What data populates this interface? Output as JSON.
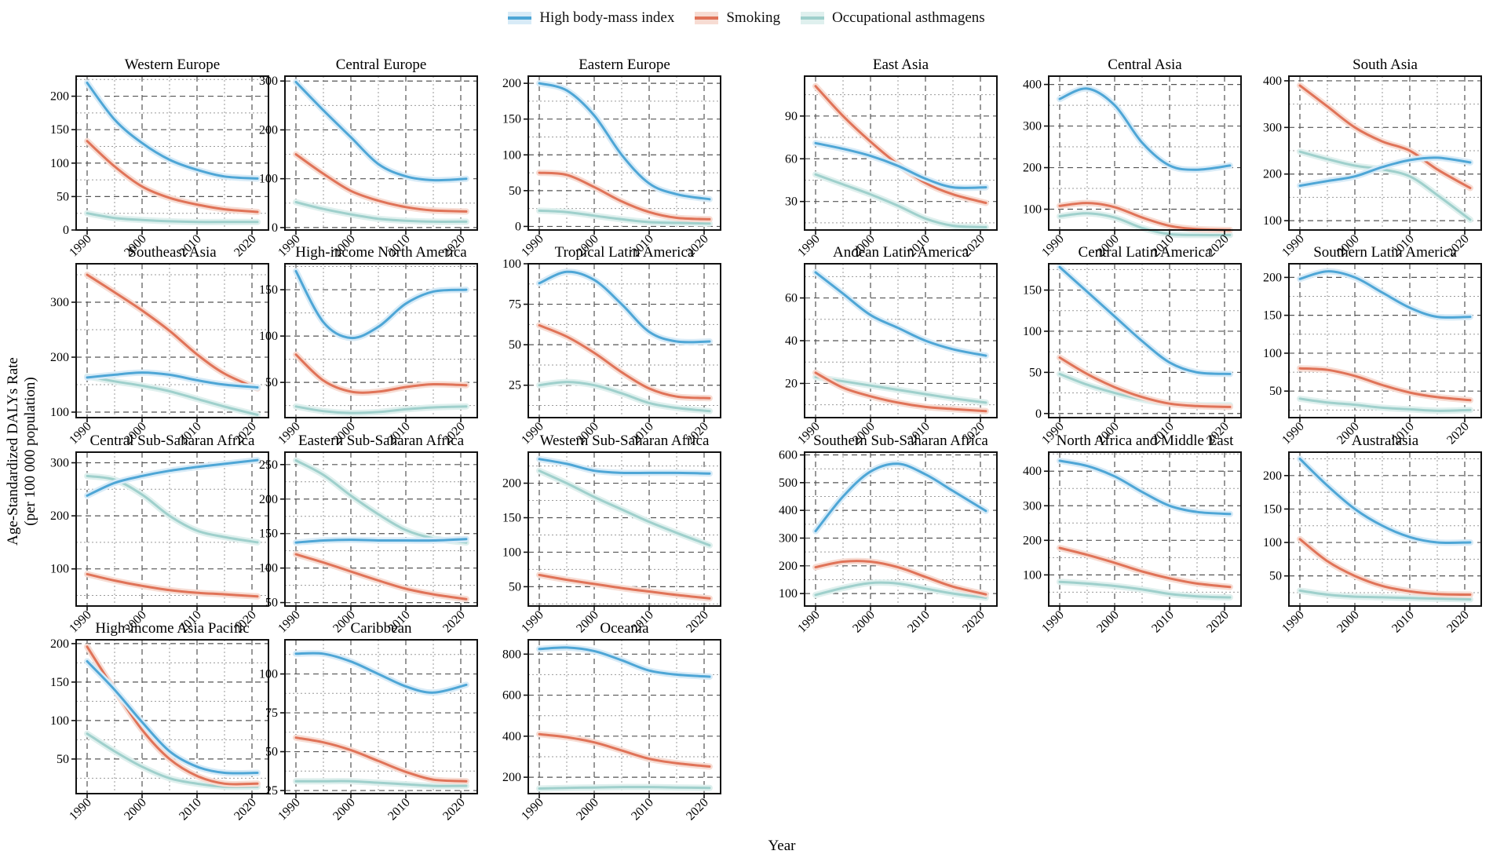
{
  "chart_data": {
    "type": "line",
    "xlabel": "Year",
    "ylabel_line1": "Age-Standardized DALYs Rate",
    "ylabel_line2": "(per 100 000 population)",
    "x_ticks": [
      "1990",
      "2000",
      "2010",
      "2020"
    ],
    "x_years": [
      1990,
      1995,
      2000,
      2005,
      2010,
      2015,
      2021
    ],
    "legend": [
      {
        "name": "High body-mass index",
        "color": "#4ea6d6",
        "fill": "#d8ebf7"
      },
      {
        "name": "Smoking",
        "color": "#e07358",
        "fill": "#f7dcd3"
      },
      {
        "name": "Occupational asthmagens",
        "color": "#9fd0cc",
        "fill": "#dff0ee"
      }
    ],
    "panels": [
      {
        "title": "Western Europe",
        "ylim": [
          0,
          230
        ],
        "yticks": [
          "0",
          "50",
          "100",
          "150",
          "200"
        ],
        "series": [
          [
            220,
            165,
            130,
            105,
            90,
            80,
            77
          ],
          [
            133,
            95,
            65,
            48,
            38,
            31,
            27
          ],
          [
            25,
            18,
            15,
            13,
            12,
            12,
            12
          ]
        ]
      },
      {
        "title": "Central Europe",
        "ylim": [
          -5,
          310
        ],
        "yticks": [
          "0",
          "100",
          "200",
          "300"
        ],
        "series": [
          [
            298,
            240,
            185,
            130,
            105,
            97,
            100
          ],
          [
            150,
            110,
            75,
            55,
            42,
            35,
            33
          ],
          [
            52,
            38,
            27,
            18,
            14,
            12,
            12
          ]
        ]
      },
      {
        "title": "Eastern Europe",
        "ylim": [
          -5,
          210
        ],
        "yticks": [
          "0",
          "50",
          "100",
          "150",
          "200"
        ],
        "series": [
          [
            200,
            190,
            155,
            100,
            60,
            45,
            38
          ],
          [
            75,
            72,
            55,
            35,
            20,
            12,
            10
          ],
          [
            22,
            20,
            15,
            10,
            6,
            5,
            4
          ]
        ]
      },
      {
        "title": "East Asia",
        "ylim": [
          10,
          118
        ],
        "yticks": [
          "30",
          "60",
          "90"
        ],
        "series": [
          [
            71,
            67,
            62,
            55,
            46,
            40,
            40
          ],
          [
            111,
            90,
            72,
            56,
            43,
            35,
            29
          ],
          [
            49,
            42,
            35,
            27,
            18,
            13,
            12
          ]
        ]
      },
      {
        "title": "Central Asia",
        "ylim": [
          50,
          420
        ],
        "yticks": [
          "100",
          "200",
          "300",
          "400"
        ],
        "series": [
          [
            365,
            390,
            350,
            260,
            205,
            195,
            205
          ],
          [
            108,
            115,
            105,
            80,
            60,
            52,
            50
          ],
          [
            83,
            90,
            80,
            55,
            40,
            38,
            38
          ]
        ]
      },
      {
        "title": "South Asia",
        "ylim": [
          80,
          410
        ],
        "yticks": [
          "100",
          "200",
          "300",
          "400"
        ],
        "series": [
          [
            175,
            185,
            195,
            215,
            230,
            235,
            225
          ],
          [
            390,
            345,
            300,
            270,
            250,
            210,
            170
          ],
          [
            248,
            232,
            218,
            210,
            195,
            155,
            102
          ]
        ]
      },
      {
        "title": "Southeast Asia",
        "ylim": [
          90,
          370
        ],
        "yticks": [
          "100",
          "200",
          "300"
        ],
        "series": [
          [
            163,
            168,
            172,
            168,
            158,
            150,
            145
          ],
          [
            350,
            318,
            285,
            248,
            205,
            170,
            143
          ],
          [
            165,
            156,
            148,
            138,
            124,
            110,
            95
          ]
        ]
      },
      {
        "title": "High-income North America",
        "ylim": [
          12,
          178
        ],
        "yticks": [
          "50",
          "100",
          "150"
        ],
        "series": [
          [
            170,
            115,
            98,
            110,
            135,
            148,
            150
          ],
          [
            80,
            52,
            40,
            40,
            45,
            48,
            47
          ],
          [
            24,
            19,
            17,
            18,
            21,
            23,
            24
          ]
        ]
      },
      {
        "title": "Tropical Latin America",
        "ylim": [
          5,
          100
        ],
        "yticks": [
          "25",
          "50",
          "75",
          "100"
        ],
        "series": [
          [
            88,
            95,
            90,
            75,
            58,
            52,
            52
          ],
          [
            62,
            55,
            45,
            33,
            23,
            18,
            17
          ],
          [
            25,
            27,
            25,
            20,
            14,
            11,
            9
          ]
        ]
      },
      {
        "title": "Andean Latin America",
        "ylim": [
          4,
          76
        ],
        "yticks": [
          "20",
          "40",
          "60"
        ],
        "series": [
          [
            72,
            62,
            52,
            46,
            40,
            36,
            33
          ],
          [
            25,
            18,
            14,
            11,
            9,
            8,
            7
          ],
          [
            23,
            21,
            19,
            17,
            15,
            13,
            11
          ]
        ]
      },
      {
        "title": "Central Latin America",
        "ylim": [
          -5,
          182
        ],
        "yticks": [
          "0",
          "50",
          "100",
          "150"
        ],
        "series": [
          [
            178,
            148,
            118,
            88,
            62,
            50,
            48
          ],
          [
            68,
            48,
            32,
            20,
            12,
            9,
            8
          ],
          [
            48,
            35,
            25,
            17,
            12,
            10,
            10
          ]
        ]
      },
      {
        "title": "Southern Latin America",
        "ylim": [
          15,
          218
        ],
        "yticks": [
          "50",
          "100",
          "150",
          "200"
        ],
        "series": [
          [
            198,
            208,
            200,
            180,
            160,
            148,
            148
          ],
          [
            80,
            78,
            70,
            58,
            48,
            42,
            38
          ],
          [
            40,
            35,
            32,
            28,
            26,
            24,
            25
          ]
        ]
      },
      {
        "title": "Central Sub-Saharan Africa",
        "ylim": [
          30,
          320
        ],
        "yticks": [
          "100",
          "200",
          "300"
        ],
        "series": [
          [
            238,
            262,
            275,
            285,
            292,
            298,
            305
          ],
          [
            90,
            78,
            68,
            60,
            55,
            52,
            48
          ],
          [
            275,
            268,
            240,
            200,
            172,
            160,
            150
          ]
        ]
      },
      {
        "title": "Eastern Sub-Saharan Africa",
        "ylim": [
          45,
          268
        ],
        "yticks": [
          "50",
          "100",
          "150",
          "200",
          "250"
        ],
        "series": [
          [
            137,
            140,
            141,
            140,
            140,
            140,
            142
          ],
          [
            120,
            108,
            95,
            82,
            70,
            62,
            55
          ],
          [
            256,
            235,
            205,
            178,
            155,
            143,
            137
          ]
        ]
      },
      {
        "title": "Western Sub-Saharan Africa",
        "ylim": [
          22,
          245
        ],
        "yticks": [
          "50",
          "100",
          "150",
          "200"
        ],
        "series": [
          [
            235,
            228,
            218,
            215,
            215,
            215,
            214
          ],
          [
            67,
            60,
            54,
            48,
            43,
            38,
            33
          ],
          [
            218,
            200,
            180,
            162,
            144,
            128,
            110
          ]
        ]
      },
      {
        "title": "Southern Sub-Saharan Africa",
        "ylim": [
          55,
          610
        ],
        "yticks": [
          "100",
          "200",
          "300",
          "400",
          "500",
          "600"
        ],
        "series": [
          [
            325,
            450,
            540,
            568,
            530,
            470,
            398
          ],
          [
            195,
            215,
            215,
            195,
            160,
            125,
            97
          ],
          [
            95,
            120,
            138,
            136,
            118,
            100,
            85
          ]
        ]
      },
      {
        "title": "North Africa and Middle East",
        "ylim": [
          10,
          455
        ],
        "yticks": [
          "100",
          "200",
          "300",
          "400"
        ],
        "series": [
          [
            430,
            415,
            385,
            340,
            300,
            282,
            276
          ],
          [
            178,
            158,
            135,
            110,
            90,
            75,
            65
          ],
          [
            80,
            75,
            68,
            58,
            45,
            38,
            35
          ]
        ]
      },
      {
        "title": "Australasia",
        "ylim": [
          5,
          235
        ],
        "yticks": [
          "50",
          "100",
          "150",
          "200"
        ],
        "series": [
          [
            225,
            185,
            150,
            125,
            108,
            100,
            100
          ],
          [
            105,
            72,
            50,
            35,
            27,
            23,
            22
          ],
          [
            28,
            22,
            19,
            18,
            17,
            16,
            15
          ]
        ]
      },
      {
        "title": "High-income Asia Pacific",
        "ylim": [
          5,
          205
        ],
        "yticks": [
          "50",
          "100",
          "150",
          "200"
        ],
        "series": [
          [
            177,
            140,
            98,
            60,
            40,
            32,
            32
          ],
          [
            196,
            140,
            88,
            50,
            28,
            18,
            18
          ],
          [
            83,
            60,
            40,
            25,
            18,
            14,
            14
          ]
        ]
      },
      {
        "title": "Caribbean",
        "ylim": [
          23,
          122
        ],
        "yticks": [
          "25",
          "50",
          "75",
          "100"
        ],
        "series": [
          [
            113,
            113,
            108,
            100,
            92,
            88,
            93
          ],
          [
            59,
            56,
            51,
            44,
            37,
            32,
            31
          ],
          [
            31,
            31,
            31,
            30,
            29,
            28,
            28
          ]
        ]
      },
      {
        "title": "Oceania",
        "ylim": [
          120,
          870
        ],
        "yticks": [
          "200",
          "400",
          "600",
          "800"
        ],
        "series": [
          [
            825,
            832,
            815,
            770,
            720,
            700,
            690
          ],
          [
            410,
            395,
            370,
            330,
            290,
            268,
            252
          ],
          [
            145,
            148,
            150,
            152,
            152,
            150,
            148
          ]
        ]
      }
    ]
  }
}
